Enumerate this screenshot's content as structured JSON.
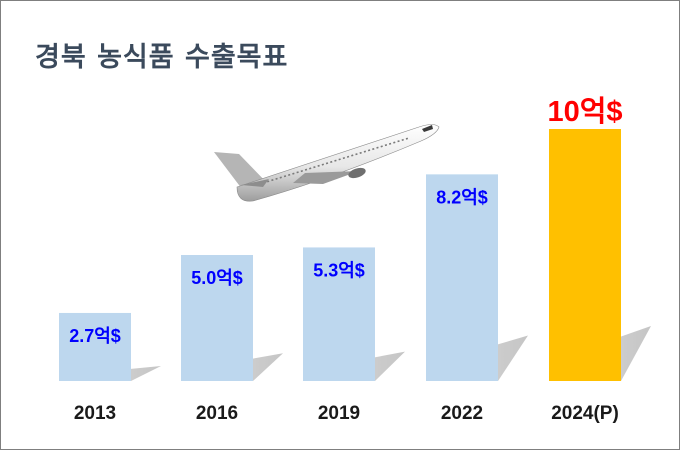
{
  "title": "경북 농식품 수출목표",
  "icon": "airplane-icon",
  "colors": {
    "actual_bar": "#bdd7ee",
    "target_bar": "#ffc000",
    "actual_label": "#0000ff",
    "target_label": "#ff0000",
    "title": "#3b4a5c",
    "axis_label": "#1a1a1a"
  },
  "chart_data": {
    "type": "bar",
    "title": "경북 농식품 수출목표",
    "categories": [
      "2013",
      "2016",
      "2019",
      "2022",
      "2024(P)"
    ],
    "values": [
      2.7,
      5.0,
      5.3,
      8.2,
      10
    ],
    "data_labels": [
      "2.7억$",
      "5.0억$",
      "5.3억$",
      "8.2억$",
      "10억$"
    ],
    "projected_index": 4,
    "unit": "억$",
    "xlabel": "",
    "ylabel": "",
    "ylim": [
      0,
      10
    ],
    "grid": false,
    "legend": "none"
  }
}
